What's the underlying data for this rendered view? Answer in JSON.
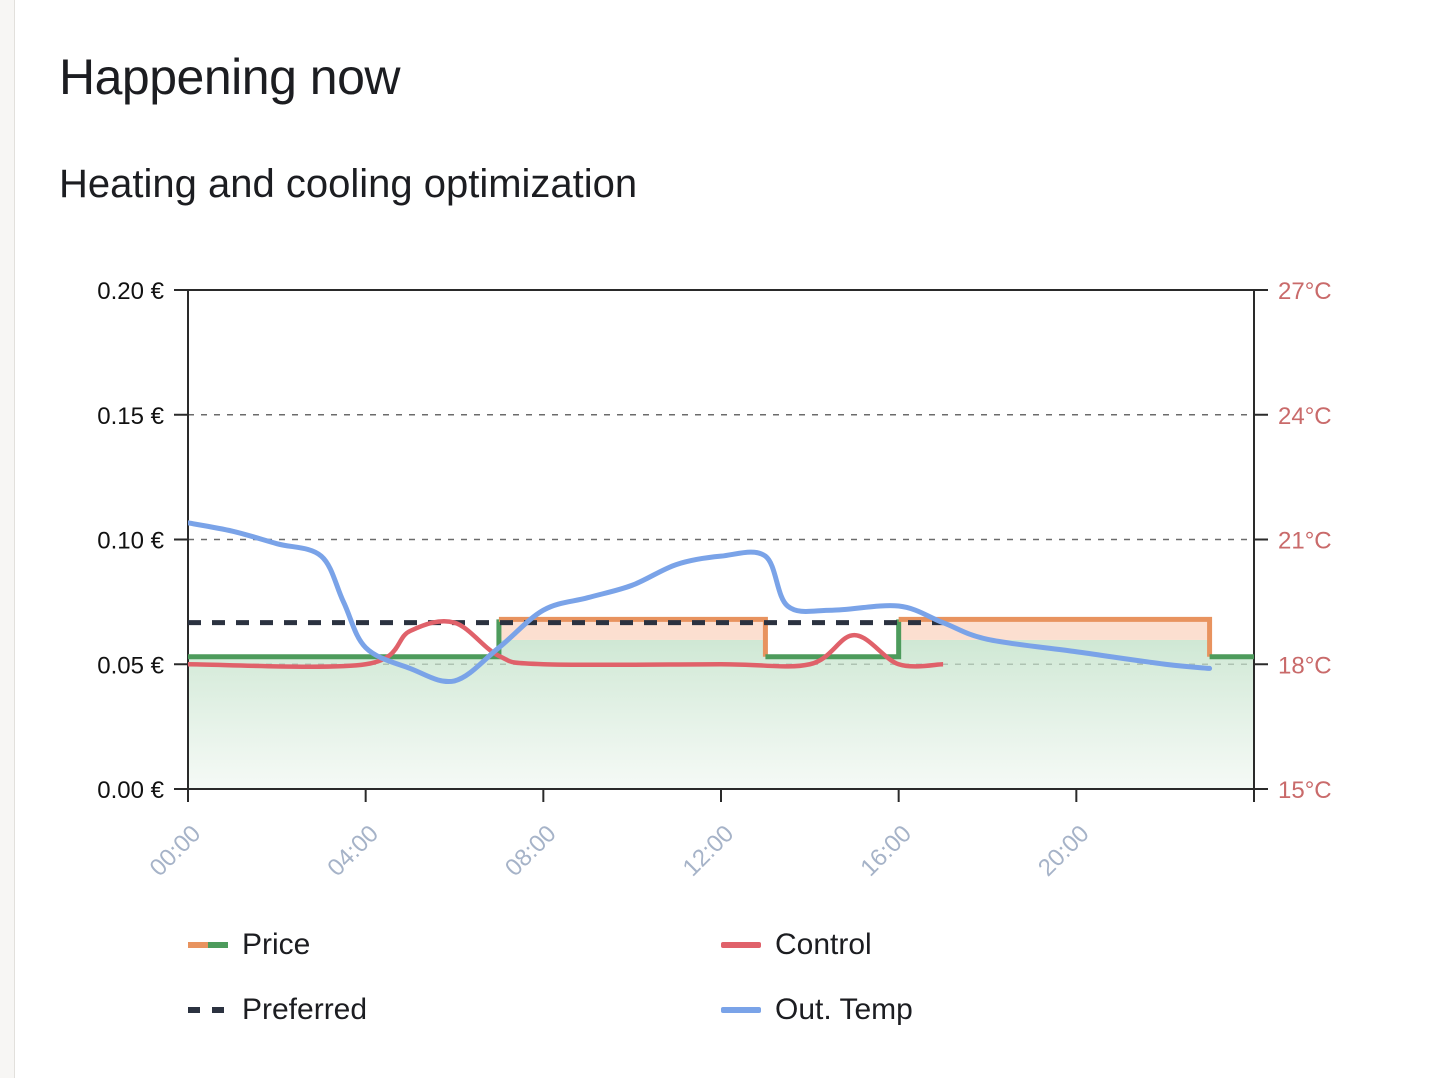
{
  "card": {
    "title": "Happening now",
    "subtitle": "Heating and cooling optimization"
  },
  "legend": {
    "price": "Price",
    "control": "Control",
    "preferred": "Preferred",
    "out_temp": "Out. Temp"
  },
  "colors": {
    "price_high": "#e8935f",
    "price_low": "#4d9b5c",
    "control": "#e0616a",
    "preferred": "#2b3240",
    "out_temp": "#7aa3e8",
    "right_axis": "#c96a6a",
    "x_axis": "#a6b3c8"
  },
  "chart_data": {
    "type": "line",
    "x_range": [
      0,
      24
    ],
    "x_ticks": [
      "00:00",
      "04:00",
      "08:00",
      "12:00",
      "16:00",
      "20:00"
    ],
    "y_left": {
      "ticks": [
        "0.00 €",
        "0.05 €",
        "0.10 €",
        "0.15 €",
        "0.20 €"
      ],
      "range": [
        0,
        0.2
      ]
    },
    "y_right": {
      "ticks": [
        "15°C",
        "18°C",
        "21°C",
        "24°C",
        "27°C"
      ],
      "range": [
        15,
        27
      ]
    },
    "grid": "dashed horizontal",
    "series": [
      {
        "name": "Price",
        "axis": "left",
        "style": "step",
        "points": [
          [
            0,
            0.053
          ],
          [
            7,
            0.068
          ],
          [
            13,
            0.053
          ],
          [
            16,
            0.068
          ],
          [
            23,
            0.053
          ],
          [
            24,
            0.053
          ]
        ]
      },
      {
        "name": "Control",
        "axis": "right",
        "points": [
          [
            0,
            18.0
          ],
          [
            4,
            18.0
          ],
          [
            5,
            18.8
          ],
          [
            6,
            19.0
          ],
          [
            7,
            18.2
          ],
          [
            8,
            18.0
          ],
          [
            12,
            18.0
          ],
          [
            14,
            18.0
          ],
          [
            15,
            18.7
          ],
          [
            16,
            18.0
          ],
          [
            17,
            18.0
          ]
        ]
      },
      {
        "name": "Preferred",
        "axis": "right",
        "style": "dashed",
        "points": [
          [
            0,
            19.0
          ],
          [
            17,
            19.0
          ]
        ]
      },
      {
        "name": "Out. Temp",
        "axis": "right",
        "points": [
          [
            0,
            21.4
          ],
          [
            1,
            21.2
          ],
          [
            2,
            20.9
          ],
          [
            3,
            20.6
          ],
          [
            3.5,
            19.5
          ],
          [
            4,
            18.4
          ],
          [
            5,
            17.9
          ],
          [
            6,
            17.6
          ],
          [
            7,
            18.4
          ],
          [
            8,
            19.3
          ],
          [
            9,
            19.6
          ],
          [
            10,
            19.9
          ],
          [
            11,
            20.4
          ],
          [
            12,
            20.6
          ],
          [
            13,
            20.6
          ],
          [
            13.5,
            19.4
          ],
          [
            14.5,
            19.3
          ],
          [
            16,
            19.4
          ],
          [
            17,
            19.0
          ],
          [
            18,
            18.6
          ],
          [
            20,
            18.3
          ],
          [
            22,
            18.0
          ],
          [
            23,
            17.9
          ]
        ]
      }
    ]
  }
}
